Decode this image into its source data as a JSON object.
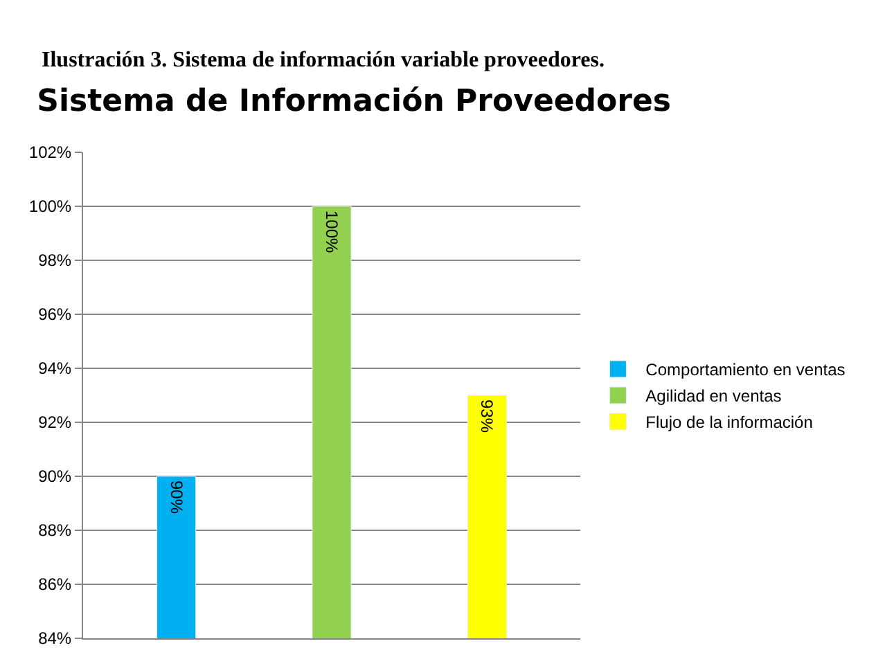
{
  "chart_data": {
    "type": "bar",
    "title": "Sistema de Información Proveedores",
    "annotations": [
      "Ilustración 3. Sistema de información variable proveedores."
    ],
    "categories": [
      null,
      null,
      null
    ],
    "series": [
      {
        "name": "Comportamiento en ventas",
        "color": "#00b0f0",
        "values": [
          90,
          null,
          null
        ],
        "value_labels": [
          "90%",
          null,
          null
        ]
      },
      {
        "name": "Agilidad en ventas",
        "color": "#92d050",
        "values": [
          null,
          100,
          null
        ],
        "value_labels": [
          null,
          "100%",
          null
        ]
      },
      {
        "name": "Flujo de la información",
        "color": "#ffff00",
        "values": [
          null,
          null,
          93
        ],
        "value_labels": [
          null,
          null,
          "93%"
        ]
      }
    ],
    "ylim": [
      84,
      102
    ],
    "yticks": [
      {
        "value": 84,
        "label": "84%"
      },
      {
        "value": 86,
        "label": "86%"
      },
      {
        "value": 88,
        "label": "88%"
      },
      {
        "value": 90,
        "label": "90%"
      },
      {
        "value": 92,
        "label": "92%"
      },
      {
        "value": 94,
        "label": "94%"
      },
      {
        "value": 96,
        "label": "96%"
      },
      {
        "value": 98,
        "label": "98%"
      },
      {
        "value": 100,
        "label": "100%"
      },
      {
        "value": 102,
        "label": "102%"
      }
    ],
    "grid": "y",
    "legend": "right"
  }
}
